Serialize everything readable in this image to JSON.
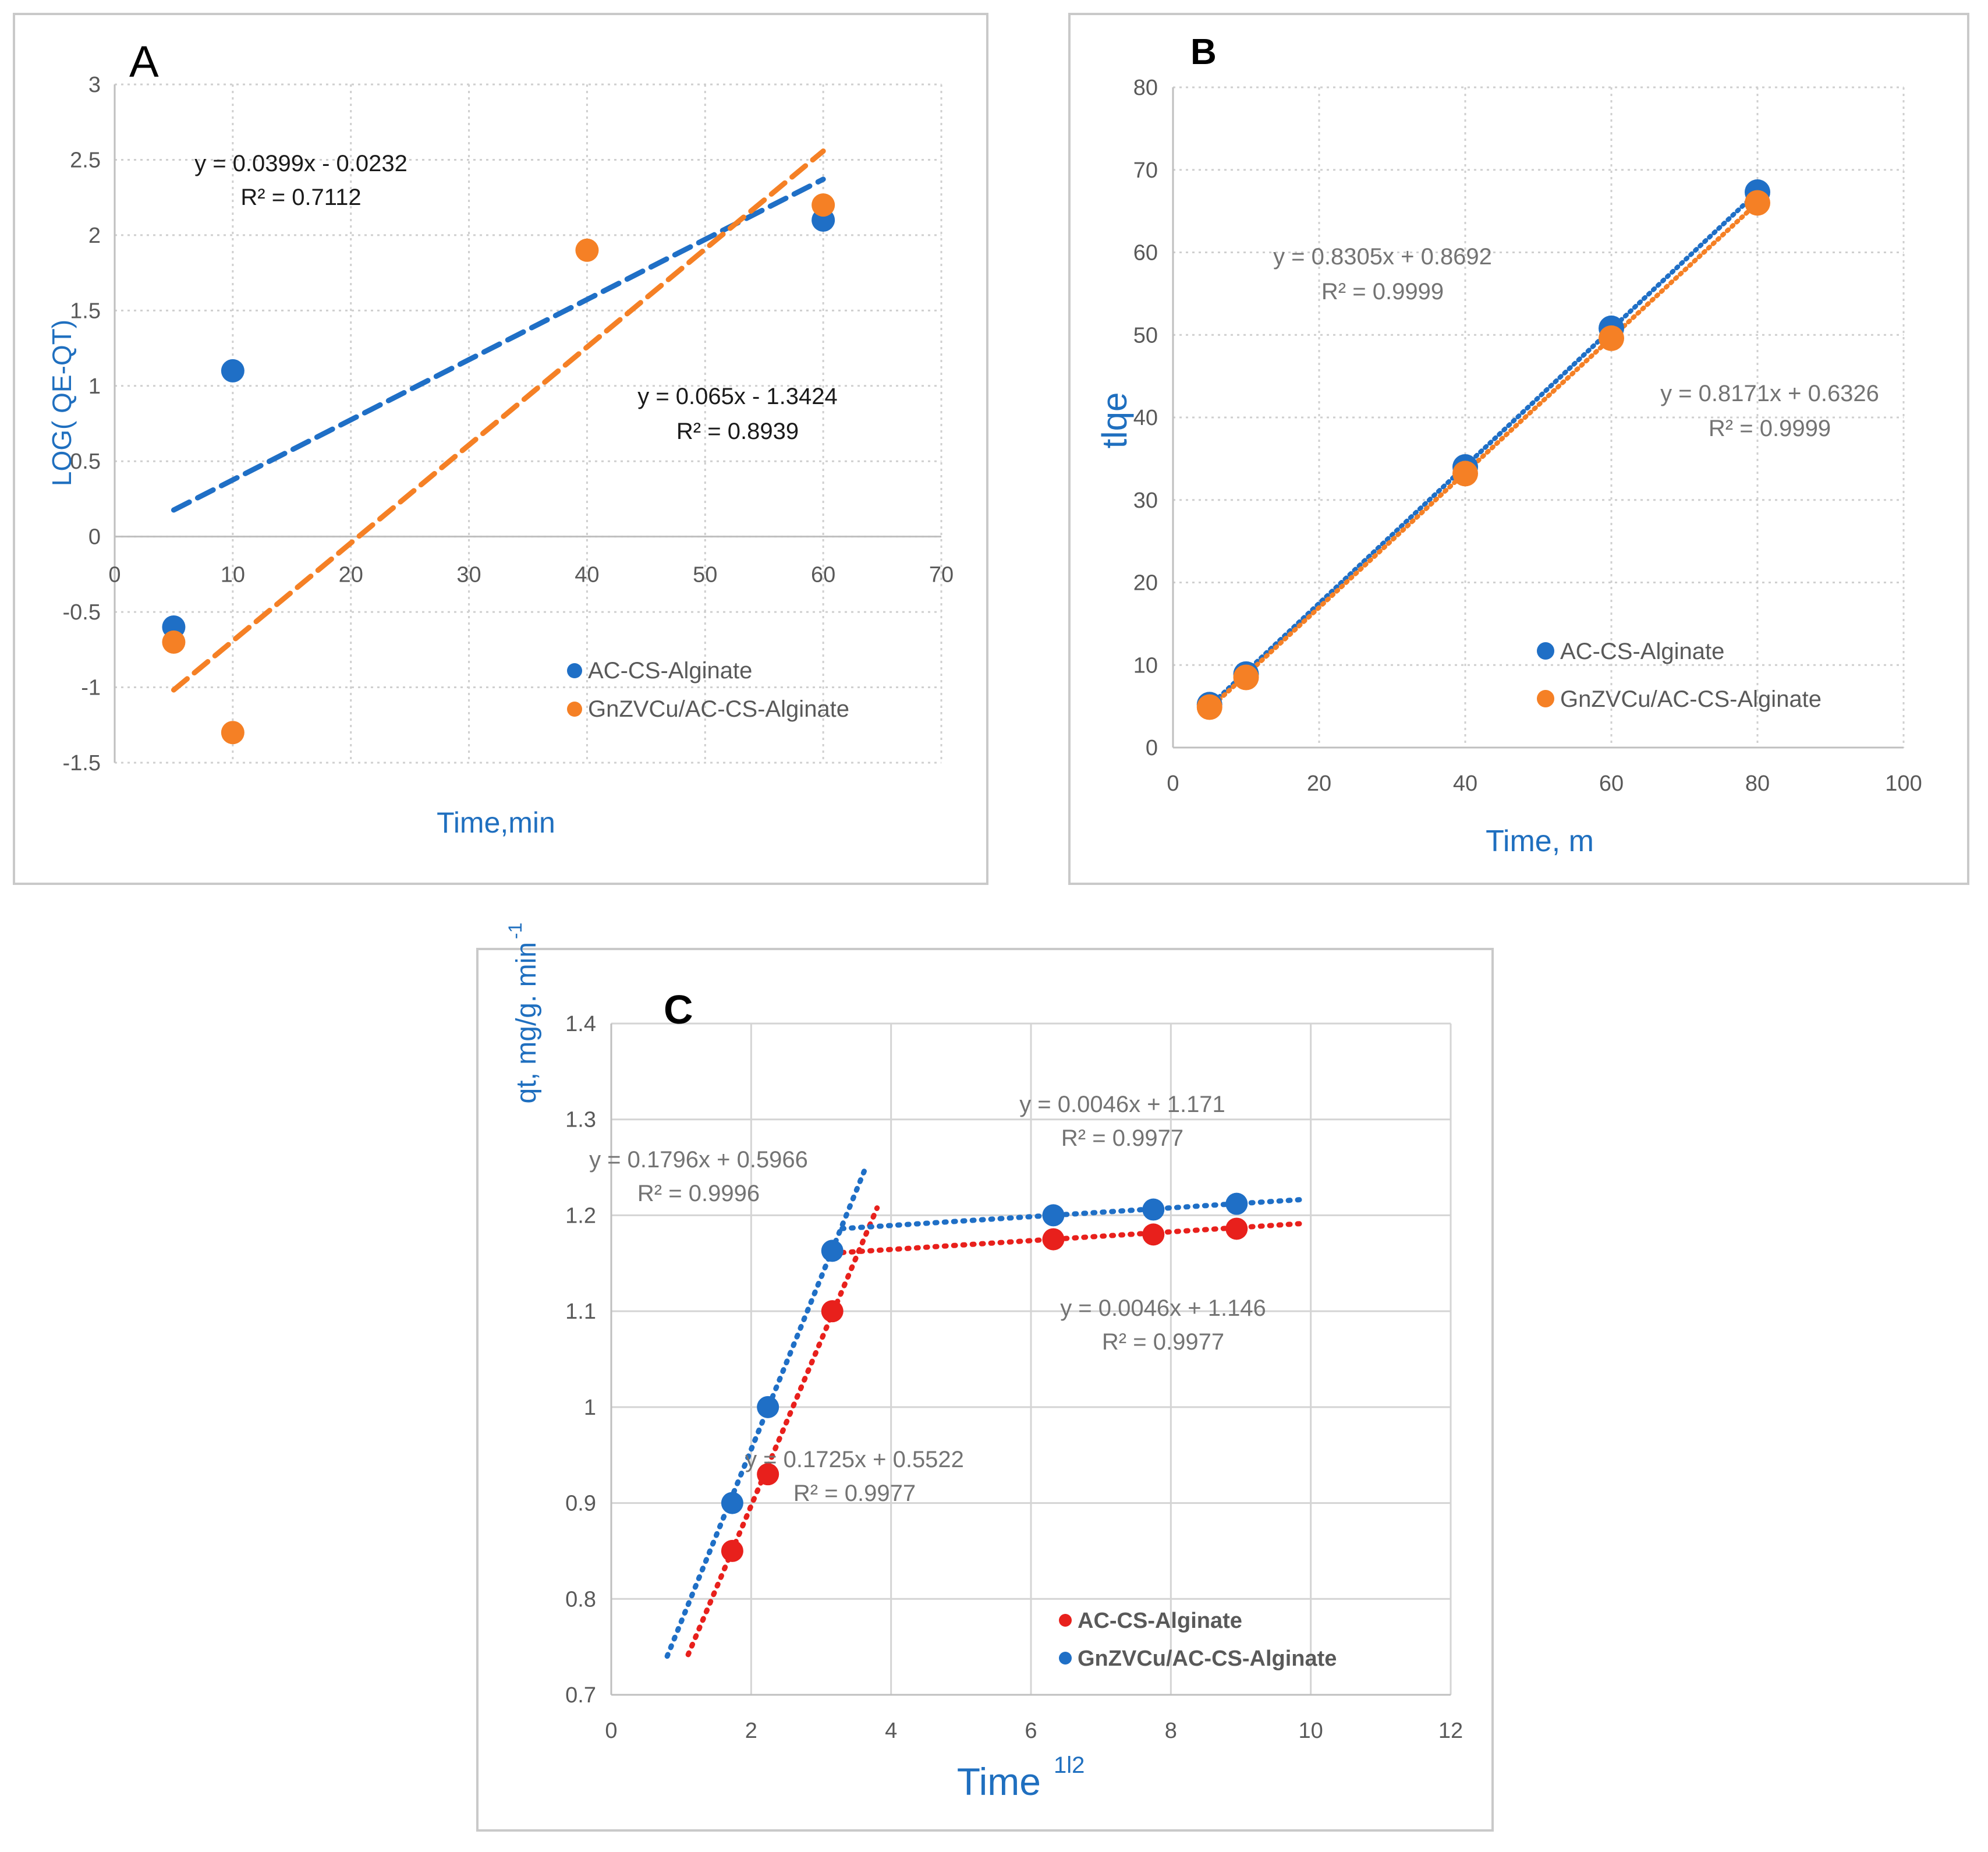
{
  "chart_data": [
    {
      "id": "A",
      "type": "scatter",
      "panel_label": "A",
      "xlabel": "Time,min",
      "ylabel": "LOG( QE-QT)",
      "xlim": [
        0,
        70
      ],
      "ylim": [
        -1.5,
        3
      ],
      "x_ticks": [
        "0",
        "10",
        "20",
        "30",
        "40",
        "50",
        "60",
        "70"
      ],
      "y_ticks": [
        "-1.5",
        "-1",
        "-0.5",
        "0",
        "0.5",
        "1",
        "1.5",
        "2",
        "2.5",
        "3"
      ],
      "series": [
        {
          "name": "AC-CS-Alginate",
          "color": "#1f6fc6",
          "points": [
            [
              5,
              -0.6
            ],
            [
              10,
              1.1
            ],
            [
              60,
              2.1
            ]
          ],
          "trendline": {
            "slope": 0.0399,
            "intercept": -0.0232,
            "x_range": [
              5,
              60
            ],
            "style": "dashed"
          },
          "equation": "y = 0.0399x - 0.0232",
          "r2": "R² = 0.7112"
        },
        {
          "name": "GnZVCu/AC-CS-Alginate",
          "color": "#f58025",
          "points": [
            [
              5,
              -0.7
            ],
            [
              10,
              -1.3
            ],
            [
              40,
              1.9
            ],
            [
              60,
              2.2
            ]
          ],
          "trendline": {
            "slope": 0.065,
            "intercept": -1.3424,
            "x_range": [
              5,
              60
            ],
            "style": "dashed"
          },
          "equation": "y = 0.065x - 1.3424",
          "r2": "R² = 0.8939"
        }
      ]
    },
    {
      "id": "B",
      "type": "scatter",
      "panel_label": "B",
      "xlabel": "Time, m",
      "ylabel": "tlqe",
      "xlim": [
        0,
        100
      ],
      "ylim": [
        0,
        80
      ],
      "x_ticks": [
        "0",
        "20",
        "40",
        "60",
        "80",
        "100"
      ],
      "y_ticks": [
        "0",
        "10",
        "20",
        "30",
        "40",
        "50",
        "60",
        "70",
        "80"
      ],
      "series": [
        {
          "name": "AC-CS-Alginate",
          "color": "#1f6fc6",
          "points": [
            [
              5,
              5.2
            ],
            [
              10,
              8.9
            ],
            [
              40,
              34
            ],
            [
              60,
              50.8
            ],
            [
              80,
              67.3
            ]
          ],
          "trendline": {
            "slope": 0.8305,
            "intercept": 0.8692,
            "x_range": [
              5,
              80
            ],
            "style": "dotted"
          },
          "equation": "y = 0.8305x + 0.8692",
          "r2": "R² = 0.9999"
        },
        {
          "name": "GnZVCu/AC-CS-Alginate",
          "color": "#f58025",
          "points": [
            [
              5,
              4.9
            ],
            [
              10,
              8.5
            ],
            [
              40,
              33.2
            ],
            [
              60,
              49.6
            ],
            [
              80,
              66
            ]
          ],
          "trendline": {
            "slope": 0.8171,
            "intercept": 0.6326,
            "x_range": [
              5,
              80
            ],
            "style": "dotted"
          },
          "equation": "y = 0.8171x + 0.6326",
          "r2": "R² = 0.9999"
        }
      ]
    },
    {
      "id": "C",
      "type": "scatter",
      "panel_label": "C",
      "xlabel": "Time",
      "xlabel_superscript": "1l2",
      "ylabel": "qt, mg/g. min",
      "ylabel_superscript": "-1",
      "xlim": [
        0,
        12
      ],
      "ylim": [
        0.7,
        1.4
      ],
      "x_ticks": [
        "0",
        "2",
        "4",
        "6",
        "8",
        "10",
        "12"
      ],
      "y_ticks": [
        "0.7",
        "0.8",
        "0.9",
        "1",
        "1.1",
        "1.2",
        "1.3",
        "1.4"
      ],
      "series": [
        {
          "name": "AC-CS-Alginate",
          "color": "#e8201c",
          "points": [
            [
              1.73,
              0.85
            ],
            [
              2.24,
              0.93
            ],
            [
              3.16,
              1.1
            ],
            [
              6.32,
              1.175
            ],
            [
              7.75,
              1.18
            ],
            [
              8.94,
              1.186
            ]
          ],
          "trendlines": [
            {
              "slope": 0.1725,
              "intercept": 0.5522,
              "x_range": [
                1.1,
                3.8
              ],
              "style": "dotted"
            },
            {
              "slope": 0.0046,
              "intercept": 1.146,
              "x_range": [
                3.3,
                9.9
              ],
              "style": "dotted"
            }
          ],
          "equations": [
            {
              "equation": "y = 0.1725x + 0.5522",
              "r2": "R² = 0.9977"
            },
            {
              "equation": "y = 0.0046x + 1.146",
              "r2": "R² = 0.9977"
            }
          ]
        },
        {
          "name": "GnZVCu/AC-CS-Alginate",
          "color": "#1f6fc6",
          "points": [
            [
              1.73,
              0.9
            ],
            [
              2.24,
              1.0
            ],
            [
              3.16,
              1.163
            ],
            [
              6.32,
              1.2
            ],
            [
              7.75,
              1.206
            ],
            [
              8.94,
              1.212
            ]
          ],
          "trendlines": [
            {
              "slope": 0.1796,
              "intercept": 0.5966,
              "x_range": [
                0.8,
                3.65
              ],
              "style": "dotted"
            },
            {
              "slope": 0.0046,
              "intercept": 1.171,
              "x_range": [
                3.3,
                9.9
              ],
              "style": "dotted"
            }
          ],
          "equations": [
            {
              "equation": "y = 0.1796x + 0.5966",
              "r2": "R² = 0.9996"
            },
            {
              "equation": "y = 0.0046x + 1.171",
              "r2": "R² = 0.9977"
            }
          ]
        }
      ]
    }
  ]
}
